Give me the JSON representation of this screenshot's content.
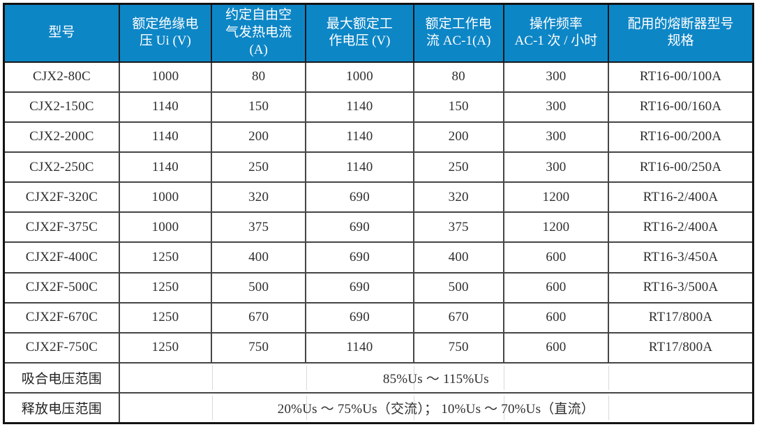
{
  "colors": {
    "header_bg": "#0d86c6",
    "header_text": "#ffffff"
  },
  "table": {
    "headers": [
      "型号",
      "额定绝缘电\n压 Ui (V)",
      "约定自由空\n气发热电流\n(A)",
      "最大额定工\n作电压 (V)",
      "额定工作电\n流 AC-1(A)",
      "操作频率\nAC-1 次 / 小时",
      "配用的熔断器型号\n规格"
    ],
    "rows": [
      [
        "CJX2-80C",
        "1000",
        "80",
        "1000",
        "80",
        "300",
        "RT16-00/100A"
      ],
      [
        "CJX2-150C",
        "1140",
        "150",
        "1140",
        "150",
        "300",
        "RT16-00/160A"
      ],
      [
        "CJX2-200C",
        "1140",
        "200",
        "1140",
        "200",
        "300",
        "RT16-00/200A"
      ],
      [
        "CJX2-250C",
        "1140",
        "250",
        "1140",
        "250",
        "300",
        "RT16-00/250A"
      ],
      [
        "CJX2F-320C",
        "1000",
        "320",
        "690",
        "320",
        "1200",
        "RT16-2/400A"
      ],
      [
        "CJX2F-375C",
        "1000",
        "375",
        "690",
        "375",
        "1200",
        "RT16-2/400A"
      ],
      [
        "CJX2F-400C",
        "1250",
        "400",
        "690",
        "400",
        "600",
        "RT16-3/450A"
      ],
      [
        "CJX2F-500C",
        "1250",
        "500",
        "690",
        "500",
        "600",
        "RT16-3/500A"
      ],
      [
        "CJX2F-670C",
        "1250",
        "670",
        "690",
        "670",
        "600",
        "RT17/800A"
      ],
      [
        "CJX2F-750C",
        "1250",
        "750",
        "1140",
        "750",
        "600",
        "RT17/800A"
      ]
    ],
    "footer_rows": [
      {
        "label": "吸合电压范围",
        "value": "85%Us ～ 115%Us"
      },
      {
        "label": "释放电压范围",
        "value": "20%Us ～ 75%Us（交流）； 10%Us ～ 70%Us（直流）"
      }
    ]
  }
}
